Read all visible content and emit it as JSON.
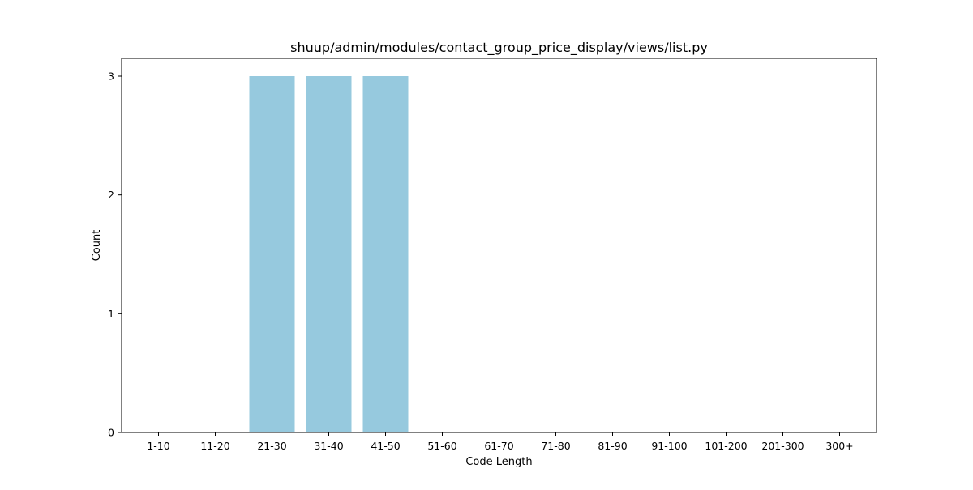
{
  "chart_data": {
    "type": "bar",
    "title": "shuup/admin/modules/contact_group_price_display/views/list.py",
    "xlabel": "Code Length",
    "ylabel": "Count",
    "categories": [
      "1-10",
      "11-20",
      "21-30",
      "31-40",
      "41-50",
      "51-60",
      "61-70",
      "71-80",
      "81-90",
      "91-100",
      "101-200",
      "201-300",
      "300+"
    ],
    "values": [
      0,
      0,
      3,
      3,
      3,
      0,
      0,
      0,
      0,
      0,
      0,
      0,
      0
    ],
    "yticks": [
      0,
      1,
      2,
      3
    ],
    "ylim": [
      0,
      3.15
    ],
    "bar_color": "#96c9de",
    "grid": false,
    "legend": "none"
  }
}
